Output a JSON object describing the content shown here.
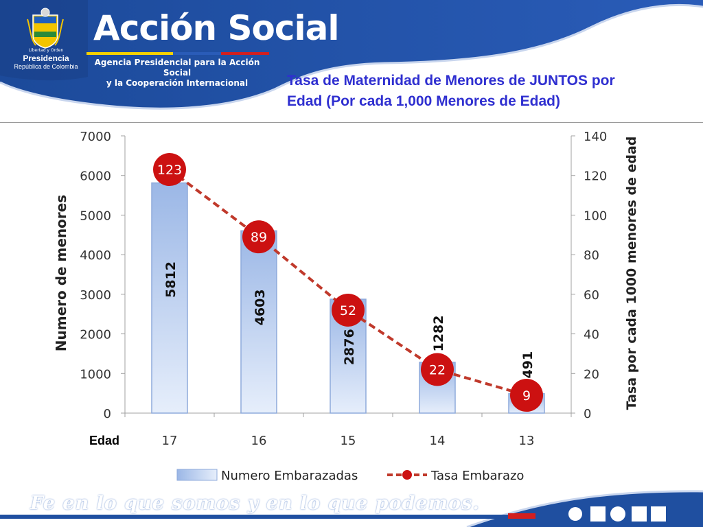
{
  "header": {
    "presidencia_motto": "Libertad y Orden",
    "presidencia_label": "Presidencia",
    "republica_label": "República de Colombia",
    "brand": "Acción Social",
    "agency_line1": "Agencia Presidencial para la Acción Social",
    "agency_line2": "y la Cooperación Internacional",
    "title_line1": "Tasa de Maternidad de Menores de JUNTOS por",
    "title_line2": "Edad (Por cada 1,000 Menores de Edad)"
  },
  "footer": {
    "slogan": "Fe en lo que somos y en lo que podemos."
  },
  "colors": {
    "brand_blue": "#1f4fa0",
    "title_blue": "#2f2fd0",
    "accent_yellow": "#f5d200",
    "accent_red": "#d21f1f",
    "bar_fill_top": "#9bb7e6",
    "bar_fill_bottom": "#e6eefb",
    "rate_line": "#c0392b",
    "marker": "#cc1111"
  },
  "chart_data": {
    "type": "bar",
    "xlabel": "Edad",
    "ylabel": "Numero de menores",
    "y2label": "Tasa por cada 1000 menores de edad",
    "categories": [
      "17",
      "16",
      "15",
      "14",
      "13"
    ],
    "ylim": [
      0,
      7000
    ],
    "yticks": [
      0,
      1000,
      2000,
      3000,
      4000,
      5000,
      6000,
      7000
    ],
    "y2lim": [
      0,
      140
    ],
    "y2ticks": [
      0,
      20,
      40,
      60,
      80,
      100,
      120,
      140
    ],
    "legend_position": "bottom",
    "grid": false,
    "series": [
      {
        "name": "Numero Embarazadas",
        "type": "bar",
        "axis": "left",
        "values": [
          5812,
          4603,
          2876,
          1282,
          491
        ]
      },
      {
        "name": "Tasa Embarazo",
        "type": "line",
        "axis": "right",
        "style": "dashed",
        "values": [
          123,
          89,
          52,
          22,
          9
        ]
      }
    ]
  }
}
